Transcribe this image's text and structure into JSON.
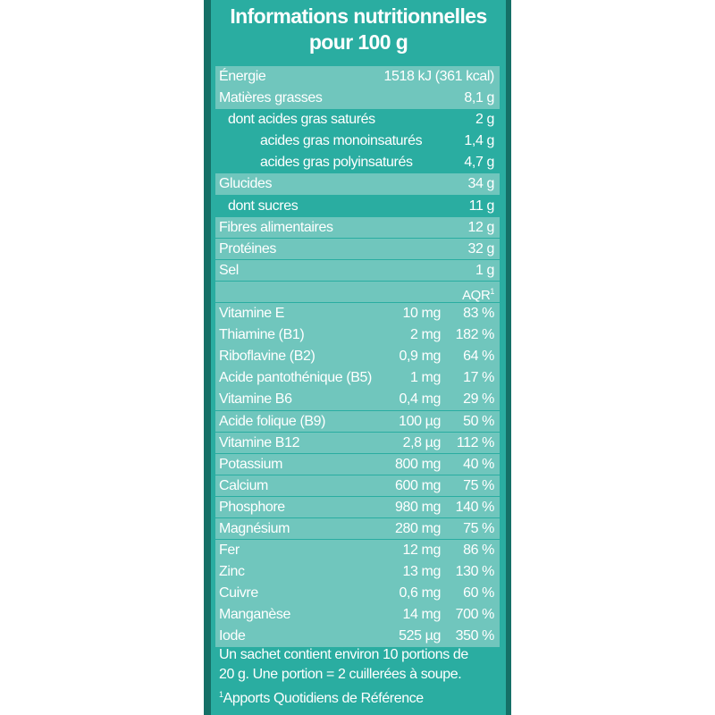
{
  "title": {
    "line1": "Informations nutritionnelles",
    "line2": "pour 100 g"
  },
  "energy": {
    "label": "Énergie",
    "value": "1518 kJ (361 kcal)"
  },
  "macros": [
    {
      "label": "Matières grasses",
      "value": "8,1 g",
      "indent": 0
    },
    {
      "label": "dont acides gras saturés",
      "value": "2 g",
      "indent": 1
    },
    {
      "label": "acides gras monoinsaturés",
      "value": "1,4 g",
      "indent": 2
    },
    {
      "label": "acides gras polyinsaturés",
      "value": "4,7 g",
      "indent": 2
    },
    {
      "label": "Glucides",
      "value": "34 g",
      "indent": 0
    },
    {
      "label": "dont sucres",
      "value": "11 g",
      "indent": 1
    },
    {
      "label": "Fibres alimentaires",
      "value": "12 g",
      "indent": 0
    },
    {
      "label": "Protéines",
      "value": "32 g",
      "indent": 0
    },
    {
      "label": "Sel",
      "value": "1 g",
      "indent": 0
    }
  ],
  "aqr_header": {
    "text": "AQR",
    "mark": "1"
  },
  "micros": [
    {
      "label": "Vitamine E",
      "amount": "10 mg",
      "percent": "83 %"
    },
    {
      "label": "Thiamine (B1)",
      "amount": "2 mg",
      "percent": "182 %"
    },
    {
      "label": "Riboflavine (B2)",
      "amount": "0,9 mg",
      "percent": "64 %"
    },
    {
      "label": "Acide pantothénique (B5)",
      "amount": "1 mg",
      "percent": "17 %"
    },
    {
      "label": "Vitamine B6",
      "amount": "0,4 mg",
      "percent": "29 %"
    },
    {
      "label": "Acide folique (B9)",
      "amount": "100 µg",
      "percent": "50 %"
    },
    {
      "label": "Vitamine B12",
      "amount": "2,8 µg",
      "percent": "112 %"
    },
    {
      "label": "Potassium",
      "amount": "800 mg",
      "percent": "40 %"
    },
    {
      "label": "Calcium",
      "amount": "600 mg",
      "percent": "75 %"
    },
    {
      "label": "Phosphore",
      "amount": "980 mg",
      "percent": "140 %"
    },
    {
      "label": "Magnésium",
      "amount": "280 mg",
      "percent": "75 %"
    },
    {
      "label": "Fer",
      "amount": "12 mg",
      "percent": "86 %"
    },
    {
      "label": "Zinc",
      "amount": "13 mg",
      "percent": "130 %"
    },
    {
      "label": "Cuivre",
      "amount": "0,6 mg",
      "percent": "60 %"
    },
    {
      "label": "Manganèse",
      "amount": "14 mg",
      "percent": "700 %"
    },
    {
      "label": "Iode",
      "amount": "525 µg",
      "percent": "350 %"
    }
  ],
  "footer": {
    "line1": "Un sachet contient environ 10 portions de",
    "line2": "20 g. Une portion =  2 cuillerées à soupe.",
    "note_mark": "1",
    "note_text": "Apports Quotidiens de Référence"
  },
  "colors": {
    "panel": "#2aada1",
    "row_shade": "#70c6bd",
    "edge": "#157067",
    "text": "#ffffff"
  }
}
